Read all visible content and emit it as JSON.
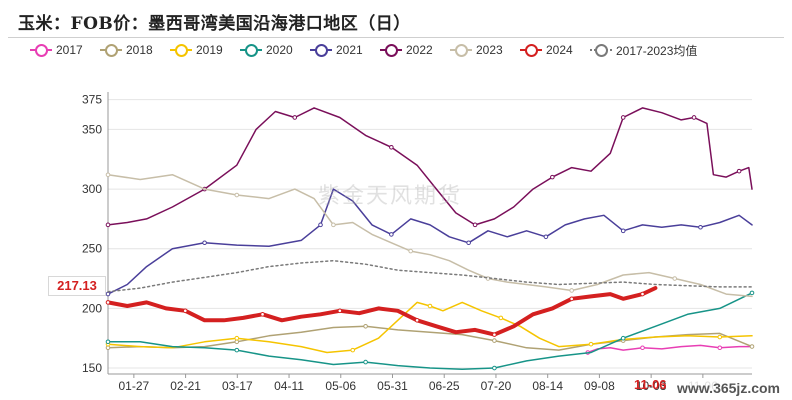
{
  "chart_data": {
    "type": "line",
    "title": "玉米：FOB价：墨西哥湾美国沿海港口地区（日）",
    "xlabel": "",
    "ylabel": "",
    "ylim": [
      145,
      378
    ],
    "y_ticks": [
      150,
      200,
      250,
      300,
      350,
      375
    ],
    "x_ticks": [
      "01-27",
      "02-21",
      "03-17",
      "04-11",
      "05-06",
      "05-31",
      "06-25",
      "07-20",
      "08-14",
      "09-08",
      "10-03",
      "11-06"
    ],
    "grid": true,
    "legend_position": "top",
    "last_value_label": "217.13",
    "last_date_label": "11-06",
    "series": [
      {
        "name": "2017",
        "color": "#e83eb4",
        "style": "solid",
        "width": 1.5,
        "values": [
          {
            "x": 0.745,
            "y": 163
          },
          {
            "x": 0.76,
            "y": 166
          },
          {
            "x": 0.78,
            "y": 167
          },
          {
            "x": 0.8,
            "y": 165
          },
          {
            "x": 0.83,
            "y": 167
          },
          {
            "x": 0.86,
            "y": 166
          },
          {
            "x": 0.89,
            "y": 168
          },
          {
            "x": 0.92,
            "y": 169
          },
          {
            "x": 0.95,
            "y": 167
          },
          {
            "x": 0.98,
            "y": 168
          },
          {
            "x": 1.0,
            "y": 168
          }
        ]
      },
      {
        "name": "2018",
        "color": "#b0a274",
        "style": "solid",
        "width": 1.5,
        "values": [
          {
            "x": 0.0,
            "y": 167
          },
          {
            "x": 0.05,
            "y": 168
          },
          {
            "x": 0.1,
            "y": 167
          },
          {
            "x": 0.15,
            "y": 168
          },
          {
            "x": 0.2,
            "y": 172
          },
          {
            "x": 0.25,
            "y": 177
          },
          {
            "x": 0.3,
            "y": 180
          },
          {
            "x": 0.35,
            "y": 184
          },
          {
            "x": 0.4,
            "y": 185
          },
          {
            "x": 0.45,
            "y": 182
          },
          {
            "x": 0.5,
            "y": 180
          },
          {
            "x": 0.55,
            "y": 178
          },
          {
            "x": 0.6,
            "y": 173
          },
          {
            "x": 0.65,
            "y": 167
          },
          {
            "x": 0.7,
            "y": 165
          },
          {
            "x": 0.75,
            "y": 170
          },
          {
            "x": 0.8,
            "y": 173
          },
          {
            "x": 0.85,
            "y": 176
          },
          {
            "x": 0.9,
            "y": 178
          },
          {
            "x": 0.95,
            "y": 179
          },
          {
            "x": 1.0,
            "y": 168
          }
        ]
      },
      {
        "name": "2019",
        "color": "#f5c400",
        "style": "solid",
        "width": 1.5,
        "values": [
          {
            "x": 0.0,
            "y": 170
          },
          {
            "x": 0.05,
            "y": 168
          },
          {
            "x": 0.1,
            "y": 167
          },
          {
            "x": 0.15,
            "y": 172
          },
          {
            "x": 0.2,
            "y": 175
          },
          {
            "x": 0.25,
            "y": 172
          },
          {
            "x": 0.3,
            "y": 168
          },
          {
            "x": 0.34,
            "y": 163
          },
          {
            "x": 0.38,
            "y": 165
          },
          {
            "x": 0.42,
            "y": 175
          },
          {
            "x": 0.45,
            "y": 190
          },
          {
            "x": 0.48,
            "y": 205
          },
          {
            "x": 0.5,
            "y": 202
          },
          {
            "x": 0.52,
            "y": 198
          },
          {
            "x": 0.55,
            "y": 205
          },
          {
            "x": 0.58,
            "y": 198
          },
          {
            "x": 0.61,
            "y": 192
          },
          {
            "x": 0.64,
            "y": 185
          },
          {
            "x": 0.67,
            "y": 175
          },
          {
            "x": 0.7,
            "y": 168
          },
          {
            "x": 0.75,
            "y": 170
          },
          {
            "x": 0.8,
            "y": 174
          },
          {
            "x": 0.85,
            "y": 176
          },
          {
            "x": 0.9,
            "y": 177
          },
          {
            "x": 0.95,
            "y": 176
          },
          {
            "x": 1.0,
            "y": 177
          }
        ]
      },
      {
        "name": "2020",
        "color": "#179488",
        "style": "solid",
        "width": 1.5,
        "values": [
          {
            "x": 0.0,
            "y": 172
          },
          {
            "x": 0.05,
            "y": 172
          },
          {
            "x": 0.1,
            "y": 168
          },
          {
            "x": 0.15,
            "y": 167
          },
          {
            "x": 0.2,
            "y": 165
          },
          {
            "x": 0.25,
            "y": 160
          },
          {
            "x": 0.3,
            "y": 157
          },
          {
            "x": 0.35,
            "y": 153
          },
          {
            "x": 0.4,
            "y": 155
          },
          {
            "x": 0.45,
            "y": 152
          },
          {
            "x": 0.5,
            "y": 150
          },
          {
            "x": 0.55,
            "y": 149
          },
          {
            "x": 0.6,
            "y": 150
          },
          {
            "x": 0.65,
            "y": 156
          },
          {
            "x": 0.7,
            "y": 160
          },
          {
            "x": 0.75,
            "y": 163
          },
          {
            "x": 0.8,
            "y": 175
          },
          {
            "x": 0.85,
            "y": 185
          },
          {
            "x": 0.9,
            "y": 195
          },
          {
            "x": 0.95,
            "y": 200
          },
          {
            "x": 1.0,
            "y": 213
          }
        ]
      },
      {
        "name": "2021",
        "color": "#4a3f9a",
        "style": "solid",
        "width": 1.5,
        "values": [
          {
            "x": 0.0,
            "y": 212
          },
          {
            "x": 0.03,
            "y": 220
          },
          {
            "x": 0.06,
            "y": 235
          },
          {
            "x": 0.1,
            "y": 250
          },
          {
            "x": 0.15,
            "y": 255
          },
          {
            "x": 0.2,
            "y": 253
          },
          {
            "x": 0.25,
            "y": 252
          },
          {
            "x": 0.3,
            "y": 257
          },
          {
            "x": 0.33,
            "y": 270
          },
          {
            "x": 0.35,
            "y": 300
          },
          {
            "x": 0.38,
            "y": 290
          },
          {
            "x": 0.41,
            "y": 270
          },
          {
            "x": 0.44,
            "y": 262
          },
          {
            "x": 0.47,
            "y": 275
          },
          {
            "x": 0.5,
            "y": 270
          },
          {
            "x": 0.53,
            "y": 260
          },
          {
            "x": 0.56,
            "y": 255
          },
          {
            "x": 0.59,
            "y": 265
          },
          {
            "x": 0.62,
            "y": 260
          },
          {
            "x": 0.65,
            "y": 265
          },
          {
            "x": 0.68,
            "y": 260
          },
          {
            "x": 0.71,
            "y": 270
          },
          {
            "x": 0.74,
            "y": 275
          },
          {
            "x": 0.77,
            "y": 278
          },
          {
            "x": 0.8,
            "y": 265
          },
          {
            "x": 0.83,
            "y": 270
          },
          {
            "x": 0.86,
            "y": 268
          },
          {
            "x": 0.89,
            "y": 270
          },
          {
            "x": 0.92,
            "y": 268
          },
          {
            "x": 0.95,
            "y": 272
          },
          {
            "x": 0.98,
            "y": 278
          },
          {
            "x": 1.0,
            "y": 270
          }
        ]
      },
      {
        "name": "2022",
        "color": "#7a0f5a",
        "style": "solid",
        "width": 1.5,
        "values": [
          {
            "x": 0.0,
            "y": 270
          },
          {
            "x": 0.03,
            "y": 272
          },
          {
            "x": 0.06,
            "y": 275
          },
          {
            "x": 0.1,
            "y": 285
          },
          {
            "x": 0.15,
            "y": 300
          },
          {
            "x": 0.2,
            "y": 320
          },
          {
            "x": 0.23,
            "y": 350
          },
          {
            "x": 0.26,
            "y": 365
          },
          {
            "x": 0.29,
            "y": 360
          },
          {
            "x": 0.32,
            "y": 368
          },
          {
            "x": 0.36,
            "y": 360
          },
          {
            "x": 0.4,
            "y": 345
          },
          {
            "x": 0.44,
            "y": 335
          },
          {
            "x": 0.48,
            "y": 320
          },
          {
            "x": 0.51,
            "y": 300
          },
          {
            "x": 0.54,
            "y": 280
          },
          {
            "x": 0.57,
            "y": 270
          },
          {
            "x": 0.6,
            "y": 275
          },
          {
            "x": 0.63,
            "y": 285
          },
          {
            "x": 0.66,
            "y": 300
          },
          {
            "x": 0.69,
            "y": 310
          },
          {
            "x": 0.72,
            "y": 318
          },
          {
            "x": 0.75,
            "y": 315
          },
          {
            "x": 0.78,
            "y": 330
          },
          {
            "x": 0.8,
            "y": 360
          },
          {
            "x": 0.83,
            "y": 368
          },
          {
            "x": 0.86,
            "y": 364
          },
          {
            "x": 0.89,
            "y": 358
          },
          {
            "x": 0.91,
            "y": 360
          },
          {
            "x": 0.93,
            "y": 355
          },
          {
            "x": 0.94,
            "y": 312
          },
          {
            "x": 0.96,
            "y": 310
          },
          {
            "x": 0.98,
            "y": 315
          },
          {
            "x": 0.995,
            "y": 318
          },
          {
            "x": 1.0,
            "y": 300
          }
        ]
      },
      {
        "name": "2023",
        "color": "#c7bea8",
        "style": "solid",
        "width": 1.5,
        "values": [
          {
            "x": 0.0,
            "y": 312
          },
          {
            "x": 0.05,
            "y": 308
          },
          {
            "x": 0.1,
            "y": 312
          },
          {
            "x": 0.15,
            "y": 300
          },
          {
            "x": 0.2,
            "y": 295
          },
          {
            "x": 0.25,
            "y": 292
          },
          {
            "x": 0.29,
            "y": 300
          },
          {
            "x": 0.32,
            "y": 292
          },
          {
            "x": 0.35,
            "y": 270
          },
          {
            "x": 0.38,
            "y": 272
          },
          {
            "x": 0.41,
            "y": 262
          },
          {
            "x": 0.44,
            "y": 255
          },
          {
            "x": 0.47,
            "y": 248
          },
          {
            "x": 0.5,
            "y": 245
          },
          {
            "x": 0.53,
            "y": 240
          },
          {
            "x": 0.56,
            "y": 232
          },
          {
            "x": 0.59,
            "y": 225
          },
          {
            "x": 0.62,
            "y": 222
          },
          {
            "x": 0.65,
            "y": 220
          },
          {
            "x": 0.68,
            "y": 218
          },
          {
            "x": 0.72,
            "y": 215
          },
          {
            "x": 0.76,
            "y": 220
          },
          {
            "x": 0.8,
            "y": 228
          },
          {
            "x": 0.84,
            "y": 230
          },
          {
            "x": 0.88,
            "y": 225
          },
          {
            "x": 0.92,
            "y": 220
          },
          {
            "x": 0.96,
            "y": 212
          },
          {
            "x": 1.0,
            "y": 210
          }
        ]
      },
      {
        "name": "2024",
        "color": "#d42020",
        "style": "solid",
        "width": 4,
        "values": [
          {
            "x": 0.0,
            "y": 205
          },
          {
            "x": 0.03,
            "y": 202
          },
          {
            "x": 0.06,
            "y": 205
          },
          {
            "x": 0.09,
            "y": 200
          },
          {
            "x": 0.12,
            "y": 198
          },
          {
            "x": 0.15,
            "y": 190
          },
          {
            "x": 0.18,
            "y": 190
          },
          {
            "x": 0.21,
            "y": 192
          },
          {
            "x": 0.24,
            "y": 195
          },
          {
            "x": 0.27,
            "y": 190
          },
          {
            "x": 0.3,
            "y": 193
          },
          {
            "x": 0.33,
            "y": 195
          },
          {
            "x": 0.36,
            "y": 198
          },
          {
            "x": 0.39,
            "y": 196
          },
          {
            "x": 0.42,
            "y": 200
          },
          {
            "x": 0.45,
            "y": 198
          },
          {
            "x": 0.48,
            "y": 190
          },
          {
            "x": 0.51,
            "y": 185
          },
          {
            "x": 0.54,
            "y": 180
          },
          {
            "x": 0.57,
            "y": 182
          },
          {
            "x": 0.6,
            "y": 178
          },
          {
            "x": 0.63,
            "y": 185
          },
          {
            "x": 0.66,
            "y": 195
          },
          {
            "x": 0.69,
            "y": 200
          },
          {
            "x": 0.72,
            "y": 208
          },
          {
            "x": 0.75,
            "y": 210
          },
          {
            "x": 0.78,
            "y": 212
          },
          {
            "x": 0.8,
            "y": 208
          },
          {
            "x": 0.83,
            "y": 212
          },
          {
            "x": 0.85,
            "y": 217
          }
        ]
      },
      {
        "name": "2017-2023均值",
        "color": "#7a7a7a",
        "style": "dotted",
        "width": 1.5,
        "values": [
          {
            "x": 0.0,
            "y": 214
          },
          {
            "x": 0.05,
            "y": 217
          },
          {
            "x": 0.1,
            "y": 222
          },
          {
            "x": 0.15,
            "y": 226
          },
          {
            "x": 0.2,
            "y": 230
          },
          {
            "x": 0.25,
            "y": 235
          },
          {
            "x": 0.3,
            "y": 238
          },
          {
            "x": 0.35,
            "y": 240
          },
          {
            "x": 0.4,
            "y": 237
          },
          {
            "x": 0.45,
            "y": 232
          },
          {
            "x": 0.5,
            "y": 230
          },
          {
            "x": 0.55,
            "y": 228
          },
          {
            "x": 0.6,
            "y": 225
          },
          {
            "x": 0.65,
            "y": 222
          },
          {
            "x": 0.7,
            "y": 220
          },
          {
            "x": 0.75,
            "y": 221
          },
          {
            "x": 0.8,
            "y": 222
          },
          {
            "x": 0.85,
            "y": 220
          },
          {
            "x": 0.9,
            "y": 219
          },
          {
            "x": 0.95,
            "y": 218
          },
          {
            "x": 1.0,
            "y": 218
          }
        ]
      }
    ]
  },
  "watermark": "紫金天风期货",
  "website": "www.365jz.com"
}
